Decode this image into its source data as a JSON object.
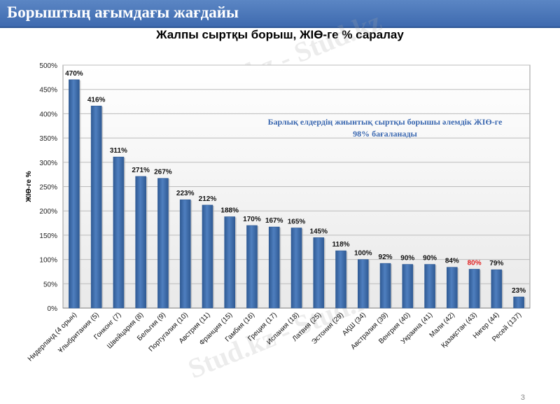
{
  "slide": {
    "header_title": "Борыштың ағымдағы жағдайы",
    "slide_number": "3",
    "watermark": "Stud.kz - Stud.kz"
  },
  "colors": {
    "bar": "#4f7fbf",
    "bar_dark": "#2f5a94",
    "highlight_label": "#e02020",
    "annotation": "#3b68b0",
    "header_bg": "#4a78bb"
  },
  "chart_data": {
    "type": "bar",
    "title": "Жалпы сыртқы борыш, ЖІӨ-ге % саралау",
    "ylabel": "ЖІӨ-ге %",
    "xlabel": "",
    "ylim": [
      0,
      500
    ],
    "yticks": [
      0,
      50,
      100,
      150,
      200,
      250,
      300,
      350,
      400,
      450,
      500
    ],
    "ytick_labels": [
      "0%",
      "50%",
      "100%",
      "150%",
      "200%",
      "250%",
      "300%",
      "350%",
      "400%",
      "450%",
      "500%"
    ],
    "grid": true,
    "categories": [
      "Нидерланд (4 орын)",
      "Ұлыбритания (5)",
      "Гонконг (7)",
      "Швейцария (8)",
      "Бельгия (9)",
      "Португалия (10)",
      "Австрия (11)",
      "Франция (15)",
      "Гамбия (16)",
      "Греция (17)",
      "Испания (18)",
      "Латвия (25)",
      "Эстония (29)",
      "АҚШ (34)",
      "Австралия (39)",
      "Венгрия (40)",
      "Украина (41)",
      "Мали (42)",
      "Қазақстан (43)",
      "Нигер (44)",
      "Ресей (137)"
    ],
    "values": [
      470,
      416,
      311,
      271,
      267,
      223,
      212,
      188,
      170,
      167,
      165,
      145,
      118,
      100,
      92,
      90,
      90,
      84,
      80,
      79,
      23
    ],
    "value_labels": [
      "470%",
      "416%",
      "311%",
      "271%",
      "267%",
      "223%",
      "212%",
      "188%",
      "170%",
      "167%",
      "165%",
      "145%",
      "118%",
      "100%",
      "92%",
      "90%",
      "90%",
      "84%",
      "80%",
      "79%",
      "23%"
    ],
    "highlight_index": 18,
    "annotation": {
      "line1": "Барлық елдердің жиынтық сыртқы борышы әлемдік ЖІӨ-ге",
      "line2": "98% бағаланады"
    }
  }
}
